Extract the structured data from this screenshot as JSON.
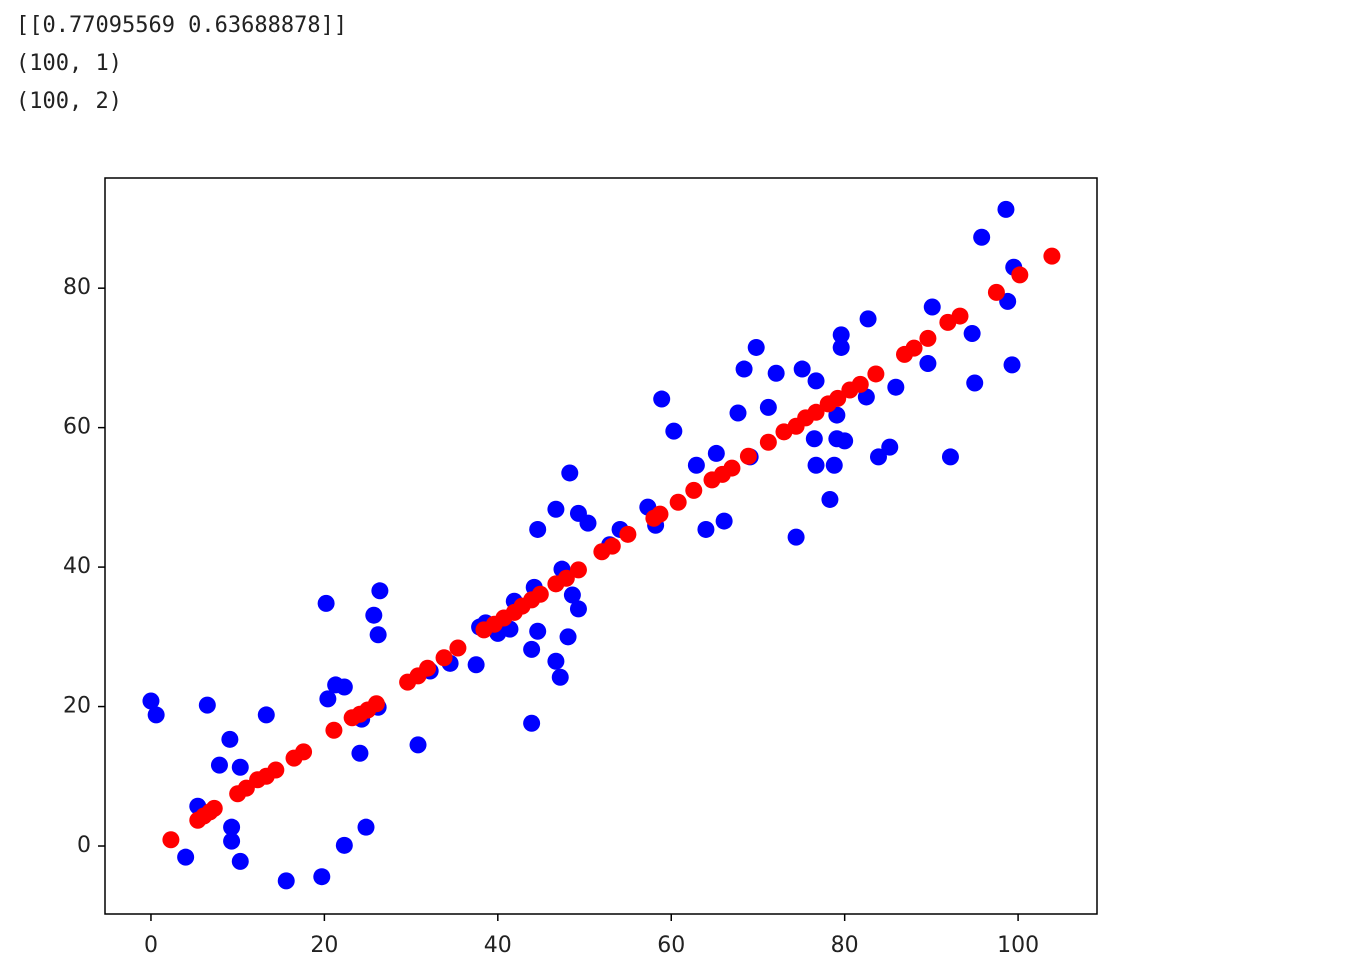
{
  "output_lines": [
    "[[0.77095569 0.63688878]]",
    "(100, 1)",
    "(100, 2)"
  ],
  "chart_data": {
    "type": "scatter",
    "xlim": [
      -5.3,
      109.1
    ],
    "ylim": [
      -9.75,
      95.8
    ],
    "xticks": [
      0,
      20,
      40,
      60,
      80,
      100
    ],
    "yticks": [
      0,
      20,
      40,
      60,
      80
    ],
    "grid": false,
    "series": [
      {
        "color": "#0000ff",
        "x": [
          0.0,
          0.6,
          4.0,
          5.4,
          6.5,
          7.9,
          9.1,
          9.3,
          9.3,
          10.3,
          10.3,
          13.3,
          15.6,
          19.7,
          20.2,
          20.4,
          21.3,
          22.3,
          22.3,
          24.1,
          24.3,
          24.8,
          25.7,
          26.2,
          26.4,
          26.2,
          30.8,
          32.2,
          34.5,
          37.5,
          37.9,
          38.6,
          40.0,
          41.4,
          41.9,
          43.9,
          43.9,
          44.2,
          44.6,
          44.6,
          46.7,
          46.7,
          47.2,
          47.4,
          48.3,
          48.6,
          49.3,
          49.3,
          48.1,
          50.4,
          52.9,
          54.1,
          57.3,
          58.2,
          58.9,
          60.3,
          62.9,
          64.0,
          65.2,
          66.1,
          67.7,
          68.4,
          69.8,
          69.1,
          71.2,
          72.1,
          74.4,
          75.1,
          76.5,
          76.7,
          76.7,
          78.3,
          78.8,
          79.1,
          79.1,
          79.6,
          79.6,
          80.0,
          82.5,
          82.7,
          83.9,
          85.2,
          85.9,
          89.6,
          90.1,
          92.2,
          94.7,
          95.0,
          95.8,
          98.6,
          98.8,
          99.3,
          99.5
        ],
        "values": [
          20.8,
          18.8,
          -1.6,
          5.7,
          20.2,
          11.6,
          15.3,
          2.7,
          0.7,
          11.3,
          -2.2,
          18.8,
          -5.0,
          -4.4,
          34.8,
          21.1,
          23.1,
          22.8,
          0.1,
          13.3,
          18.2,
          2.7,
          33.1,
          30.3,
          36.6,
          19.9,
          14.5,
          25.1,
          26.2,
          26.0,
          31.4,
          32.0,
          30.5,
          31.1,
          35.1,
          17.6,
          28.2,
          37.1,
          30.8,
          45.4,
          26.5,
          48.3,
          24.2,
          39.7,
          53.5,
          36.0,
          47.7,
          34.0,
          30.0,
          46.3,
          43.2,
          45.4,
          48.6,
          46.0,
          64.1,
          59.5,
          54.6,
          45.4,
          56.3,
          46.6,
          62.1,
          68.4,
          71.5,
          55.8,
          62.9,
          67.8,
          44.3,
          68.4,
          58.4,
          66.7,
          54.6,
          49.7,
          54.6,
          61.8,
          58.4,
          71.5,
          73.3,
          58.1,
          64.4,
          75.6,
          55.8,
          57.2,
          65.8,
          69.2,
          77.3,
          55.8,
          73.5,
          66.4,
          87.3,
          91.3,
          78.1,
          69.0,
          83.0
        ]
      },
      {
        "color": "#ff0000",
        "x": [
          2.3,
          5.4,
          6.1,
          6.8,
          7.3,
          10.0,
          11.0,
          12.3,
          13.3,
          14.4,
          16.5,
          17.6,
          21.1,
          23.2,
          24.1,
          25.0,
          26.0,
          29.6,
          30.8,
          31.9,
          33.8,
          35.4,
          38.4,
          39.6,
          40.7,
          41.9,
          42.8,
          43.9,
          44.9,
          46.7,
          47.9,
          49.3,
          52.0,
          53.2,
          55.0,
          58.0,
          58.7,
          60.8,
          62.6,
          64.7,
          65.9,
          67.0,
          68.9,
          71.2,
          73.0,
          74.4,
          75.5,
          76.7,
          78.1,
          79.2,
          80.6,
          81.8,
          83.6,
          86.9,
          88.0,
          89.6,
          91.9,
          93.3,
          97.5,
          100.2,
          103.9
        ],
        "values": [
          0.9,
          3.7,
          4.3,
          4.9,
          5.4,
          7.5,
          8.3,
          9.5,
          10.0,
          10.9,
          12.6,
          13.5,
          16.6,
          18.4,
          18.9,
          19.5,
          20.4,
          23.5,
          24.4,
          25.5,
          27.0,
          28.4,
          31.0,
          31.8,
          32.7,
          33.5,
          34.4,
          35.3,
          36.1,
          37.6,
          38.4,
          39.6,
          42.2,
          43.0,
          44.7,
          47.0,
          47.6,
          49.3,
          51.0,
          52.5,
          53.3,
          54.2,
          55.9,
          57.9,
          59.4,
          60.2,
          61.4,
          62.2,
          63.4,
          64.2,
          65.4,
          66.2,
          67.7,
          70.5,
          71.4,
          72.8,
          75.1,
          76.0,
          79.4,
          81.9,
          84.6
        ]
      }
    ]
  }
}
